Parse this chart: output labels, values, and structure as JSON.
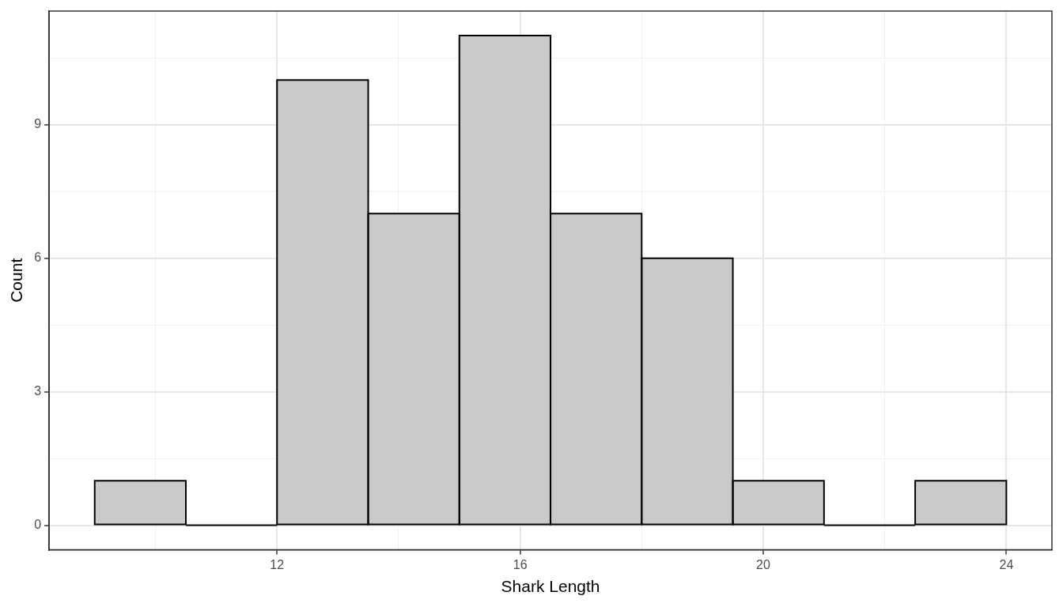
{
  "chart_data": {
    "type": "histogram",
    "xlabel": "Shark Length",
    "ylabel": "Count",
    "bins": [
      9,
      10.5,
      12,
      13.5,
      15,
      16.5,
      18,
      19.5,
      21,
      22.5,
      24
    ],
    "values": [
      1,
      0,
      10,
      7,
      11,
      7,
      6,
      1,
      0,
      1
    ],
    "color": "#c9c9c9",
    "xlim": [
      8.25,
      24.75
    ],
    "xticks": [
      {
        "value": 10,
        "label": null
      },
      12,
      {
        "value": 14,
        "label": null
      },
      16,
      {
        "value": 18,
        "label": null
      },
      20,
      {
        "value": 22,
        "label": null
      },
      24
    ],
    "ylim": [
      -0.55,
      11.55
    ],
    "yticks": [
      0,
      {
        "value": 1.5,
        "label": null
      },
      3,
      {
        "value": 4.5,
        "label": null
      },
      6,
      {
        "value": 7.5,
        "label": null
      },
      9,
      {
        "value": 10.5,
        "label": null
      }
    ],
    "grid": true
  }
}
